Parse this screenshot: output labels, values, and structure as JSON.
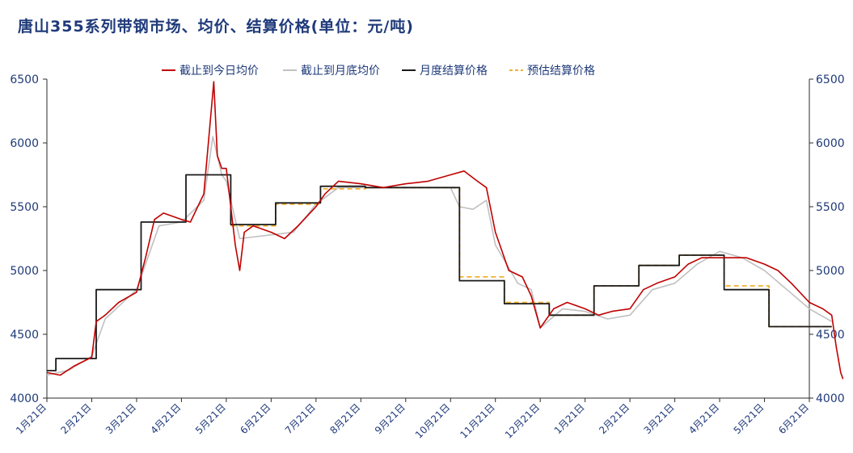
{
  "chart_data": {
    "type": "line",
    "title": "唐山355系列带钢市场、均价、结算价格(单位：元/吨)",
    "xlabel": "",
    "ylabel": "",
    "ylim": [
      4000,
      6500
    ],
    "yticks": [
      4000,
      4500,
      5000,
      5500,
      6000,
      6500
    ],
    "secondary_y": true,
    "grid": false,
    "legend_position": "top-center",
    "x_ticks": [
      "1月21日",
      "2月21日",
      "3月21日",
      "4月21日",
      "5月21日",
      "6月21日",
      "7月21日",
      "8月21日",
      "9月21日",
      "10月21日",
      "11月21日",
      "12月21日",
      "1月21日",
      "2月21日",
      "3月21日",
      "4月21日",
      "5月21日",
      "6月21日"
    ],
    "series": [
      {
        "name": "截止到今日均价",
        "color": "#c00000",
        "style": "solid",
        "points": [
          [
            0,
            4200
          ],
          [
            0.3,
            4180
          ],
          [
            0.6,
            4250
          ],
          [
            1,
            4320
          ],
          [
            1.1,
            4600
          ],
          [
            1.3,
            4650
          ],
          [
            1.6,
            4750
          ],
          [
            2,
            4830
          ],
          [
            2.2,
            5100
          ],
          [
            2.4,
            5400
          ],
          [
            2.6,
            5450
          ],
          [
            3,
            5400
          ],
          [
            3.2,
            5380
          ],
          [
            3.5,
            5600
          ],
          [
            3.65,
            6200
          ],
          [
            3.72,
            6480
          ],
          [
            3.8,
            5900
          ],
          [
            3.9,
            5800
          ],
          [
            4,
            5800
          ],
          [
            4.1,
            5500
          ],
          [
            4.2,
            5200
          ],
          [
            4.3,
            5000
          ],
          [
            4.4,
            5300
          ],
          [
            4.6,
            5350
          ],
          [
            5,
            5300
          ],
          [
            5.3,
            5250
          ],
          [
            5.6,
            5350
          ],
          [
            6,
            5500
          ],
          [
            6.2,
            5600
          ],
          [
            6.5,
            5700
          ],
          [
            7,
            5680
          ],
          [
            7.5,
            5650
          ],
          [
            8,
            5680
          ],
          [
            8.5,
            5700
          ],
          [
            9,
            5750
          ],
          [
            9.3,
            5780
          ],
          [
            9.6,
            5700
          ],
          [
            9.8,
            5650
          ],
          [
            10,
            5300
          ],
          [
            10.3,
            5000
          ],
          [
            10.6,
            4950
          ],
          [
            10.8,
            4800
          ],
          [
            11,
            4550
          ],
          [
            11.3,
            4700
          ],
          [
            11.6,
            4750
          ],
          [
            12,
            4700
          ],
          [
            12.3,
            4650
          ],
          [
            12.6,
            4680
          ],
          [
            13,
            4700
          ],
          [
            13.3,
            4850
          ],
          [
            13.6,
            4900
          ],
          [
            14,
            4950
          ],
          [
            14.3,
            5050
          ],
          [
            14.6,
            5100
          ],
          [
            15,
            5100
          ],
          [
            15.3,
            5100
          ],
          [
            15.6,
            5100
          ],
          [
            16,
            5050
          ],
          [
            16.3,
            5000
          ],
          [
            16.6,
            4900
          ],
          [
            17,
            4750
          ],
          [
            17.3,
            4700
          ],
          [
            17.5,
            4650
          ],
          [
            17.6,
            4400
          ],
          [
            17.7,
            4200
          ],
          [
            17.75,
            4150
          ]
        ]
      },
      {
        "name": "截止到月底均价",
        "color": "#c0c0c0",
        "style": "solid",
        "points": [
          [
            0,
            4180
          ],
          [
            0.5,
            4220
          ],
          [
            1,
            4330
          ],
          [
            1.3,
            4620
          ],
          [
            2,
            4850
          ],
          [
            2.5,
            5350
          ],
          [
            3,
            5380
          ],
          [
            3.5,
            5550
          ],
          [
            3.7,
            6050
          ],
          [
            3.9,
            5750
          ],
          [
            4,
            5700
          ],
          [
            4.3,
            5250
          ],
          [
            5,
            5280
          ],
          [
            5.5,
            5300
          ],
          [
            6,
            5520
          ],
          [
            6.5,
            5650
          ],
          [
            7,
            5650
          ],
          [
            8,
            5650
          ],
          [
            9,
            5650
          ],
          [
            9.2,
            5500
          ],
          [
            9.5,
            5480
          ],
          [
            9.8,
            5550
          ],
          [
            10,
            5200
          ],
          [
            10.5,
            4900
          ],
          [
            10.8,
            4850
          ],
          [
            11,
            4550
          ],
          [
            11.5,
            4700
          ],
          [
            12,
            4680
          ],
          [
            12.5,
            4620
          ],
          [
            13,
            4650
          ],
          [
            13.5,
            4850
          ],
          [
            14,
            4900
          ],
          [
            14.5,
            5050
          ],
          [
            15,
            5150
          ],
          [
            15.5,
            5100
          ],
          [
            16,
            5000
          ],
          [
            16.5,
            4850
          ],
          [
            17,
            4700
          ],
          [
            17.5,
            4600
          ]
        ]
      },
      {
        "name": "月度结算价格",
        "color": "#1a1a1a",
        "style": "step",
        "points": [
          [
            0,
            4215
          ],
          [
            0.2,
            4215
          ],
          [
            0.2,
            4310
          ],
          [
            1.1,
            4310
          ],
          [
            1.1,
            4850
          ],
          [
            2.1,
            4850
          ],
          [
            2.1,
            5380
          ],
          [
            3.1,
            5380
          ],
          [
            3.1,
            5750
          ],
          [
            4.1,
            5750
          ],
          [
            4.1,
            5360
          ],
          [
            5.1,
            5360
          ],
          [
            5.1,
            5530
          ],
          [
            6.1,
            5530
          ],
          [
            6.1,
            5660
          ],
          [
            7.1,
            5660
          ],
          [
            7.1,
            5650
          ],
          [
            9.2,
            5650
          ],
          [
            9.2,
            4920
          ],
          [
            10.2,
            4920
          ],
          [
            10.2,
            4740
          ],
          [
            11.2,
            4740
          ],
          [
            11.2,
            4650
          ],
          [
            12.2,
            4650
          ],
          [
            12.2,
            4880
          ],
          [
            13.2,
            4880
          ],
          [
            13.2,
            5040
          ],
          [
            14.1,
            5040
          ],
          [
            14.1,
            5120
          ],
          [
            15.1,
            5120
          ],
          [
            15.1,
            4850
          ],
          [
            16.1,
            4850
          ],
          [
            16.1,
            4560
          ],
          [
            17.5,
            4560
          ]
        ]
      },
      {
        "name": "预估结算价格",
        "color": "#f0b030",
        "style": "dashed",
        "points": [
          [
            4.1,
            5350
          ],
          [
            5.1,
            5350
          ],
          [
            5.1,
            5520
          ],
          [
            6.1,
            5520
          ],
          [
            6.1,
            5640
          ],
          [
            7.1,
            5640
          ],
          [
            7.1,
            5650
          ],
          [
            9.2,
            5650
          ],
          [
            9.2,
            4950
          ],
          [
            10.2,
            4950
          ],
          [
            10.2,
            4750
          ],
          [
            11.2,
            4750
          ],
          [
            11.2,
            4650
          ],
          [
            12.2,
            4650
          ],
          [
            12.2,
            4880
          ],
          [
            13.2,
            4880
          ],
          [
            13.2,
            5040
          ],
          [
            14.1,
            5040
          ],
          [
            14.1,
            5120
          ],
          [
            15.1,
            5120
          ],
          [
            15.1,
            4880
          ],
          [
            16.1,
            4880
          ],
          [
            16.1,
            4560
          ],
          [
            17.5,
            4560
          ]
        ]
      }
    ]
  }
}
